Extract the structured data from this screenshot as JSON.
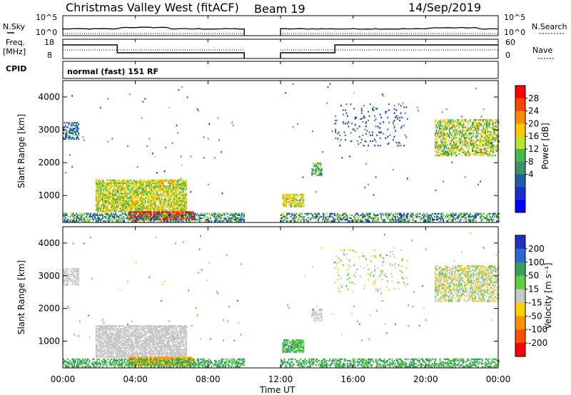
{
  "title": {
    "radar": "Christmas Valley West (fitACF)",
    "beam": "Beam 19",
    "date": "14/Sep/2019"
  },
  "top_panels": {
    "nsky_label": "N.Sky",
    "nsearch_label": "N.Search",
    "nsky_ticks": [
      "10^5",
      "10^0"
    ],
    "nsearch_ticks": [
      "10^5",
      "10^0"
    ],
    "freq_label": "Freq.",
    "freq_unit": "[MHz]",
    "freq_ticks": [
      "18",
      "8"
    ],
    "nave_label": "Nave",
    "nave_ticks": [
      "60",
      "0"
    ],
    "cpid_label": "CPID",
    "cpid_text": "normal (fast) 151 RF"
  },
  "chart_data": [
    {
      "type": "heatmap",
      "name": "power",
      "ylabel": "Slant Range [km]",
      "xlabel": "Time UT",
      "xlim": [
        0,
        24
      ],
      "ylim": [
        180,
        4500
      ],
      "yticks": [
        "4000",
        "3000",
        "2000",
        "1000"
      ],
      "colorbar": {
        "label": "Power [dB]",
        "ticks": [
          "28",
          "24",
          "20",
          "16",
          "12",
          "8",
          "4"
        ],
        "colors": [
          "#ff0000",
          "#ff4400",
          "#ff8c00",
          "#ffc800",
          "#b9e32c",
          "#45b94a",
          "#3f8f6a",
          "#1f5fa0",
          "#1a2fd0",
          "#0000ff"
        ]
      },
      "data_gap_hours": [
        10,
        12
      ]
    },
    {
      "type": "heatmap",
      "name": "velocity",
      "ylabel": "Slant Range [km]",
      "xlabel": "Time UT",
      "xlim": [
        0,
        24
      ],
      "ylim": [
        180,
        4500
      ],
      "yticks": [
        "4000",
        "3000",
        "2000",
        "1000"
      ],
      "colorbar": {
        "label": "Velocity [m s⁻¹]",
        "ticks": [
          "200",
          "100",
          "50",
          "15",
          "-15",
          "-50",
          "-100",
          "-200"
        ],
        "colors": [
          "#2030c0",
          "#2a6ad0",
          "#3aa060",
          "#5fd040",
          "#c8c8c8",
          "#ffd000",
          "#ff9000",
          "#ff5000",
          "#ff0000"
        ]
      },
      "data_gap_hours": [
        10,
        12
      ]
    }
  ],
  "xaxis": {
    "ticks": [
      "00:00",
      "04:00",
      "08:00",
      "12:00",
      "16:00",
      "20:00",
      "00:00"
    ],
    "label": "Time UT"
  }
}
